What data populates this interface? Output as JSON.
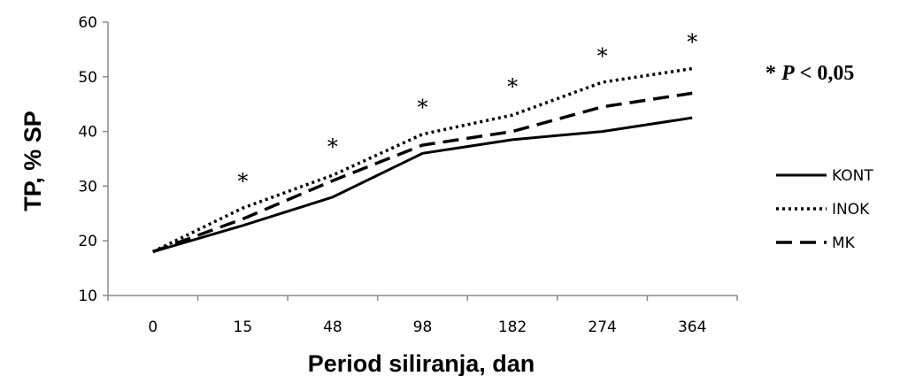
{
  "chart_data": {
    "type": "line",
    "categories": [
      "0",
      "15",
      "48",
      "98",
      "182",
      "274",
      "364"
    ],
    "series": [
      {
        "name": "KONT",
        "values": [
          18,
          22.8,
          28,
          36,
          38.5,
          40,
          42.5
        ],
        "style": "solid"
      },
      {
        "name": "INOK",
        "values": [
          18,
          26,
          32,
          39.5,
          43,
          49,
          51.5
        ],
        "style": "dotted"
      },
      {
        "name": "MK",
        "values": [
          18,
          24,
          31,
          37.5,
          40,
          44.5,
          47
        ],
        "style": "dashed"
      }
    ],
    "xlabel": "Period siliranja, dan",
    "ylabel": "TP, % SP",
    "ylim": [
      10,
      60
    ],
    "yticks": [
      "10",
      "20",
      "30",
      "40",
      "50",
      "60"
    ],
    "grid": false,
    "legend": "right",
    "significance_markers": {
      "symbol": "*",
      "categories": [
        "15",
        "48",
        "98",
        "182",
        "274",
        "364"
      ],
      "values": [
        31.5,
        37.8,
        45,
        48.8,
        54.4,
        57
      ]
    },
    "annotation": {
      "star": "*",
      "p_letter": "P",
      "p_text": " < 0,05"
    },
    "colors": {
      "line": "#000000",
      "axis": "#8a8a8a"
    }
  }
}
